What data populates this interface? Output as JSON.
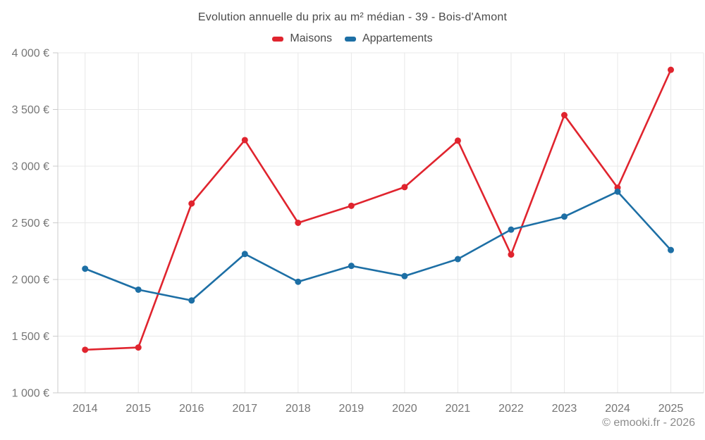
{
  "chart_data": {
    "type": "line",
    "title": "Evolution annuelle du prix au m² médian - 39 - Bois-d'Amont",
    "categories": [
      "2014",
      "2015",
      "2016",
      "2017",
      "2018",
      "2019",
      "2020",
      "2021",
      "2022",
      "2023",
      "2024",
      "2025"
    ],
    "series": [
      {
        "name": "Maisons",
        "color": "#e0242e",
        "values": [
          1380,
          1400,
          2670,
          3230,
          2500,
          2650,
          2815,
          3225,
          2220,
          3450,
          2810,
          3850
        ]
      },
      {
        "name": "Appartements",
        "color": "#1d6fa5",
        "values": [
          2095,
          1910,
          1815,
          2225,
          1980,
          2120,
          2030,
          2180,
          2440,
          2555,
          2775,
          2260
        ]
      }
    ],
    "ylim": [
      1000,
      4000
    ],
    "ytick_step": 500,
    "ytick_suffix": " €",
    "grid": true,
    "legend_position": "top",
    "marker": "circle"
  },
  "footer": {
    "credit": "© emooki.fr - 2026"
  },
  "colors": {
    "grid": "#e8e8e8",
    "axis": "#cbcbcb",
    "tick_label": "#767676",
    "title_text": "#4a4a4a",
    "legend_text": "#4a4a4a",
    "footer_text": "#8c8c8c",
    "background": "#ffffff"
  }
}
